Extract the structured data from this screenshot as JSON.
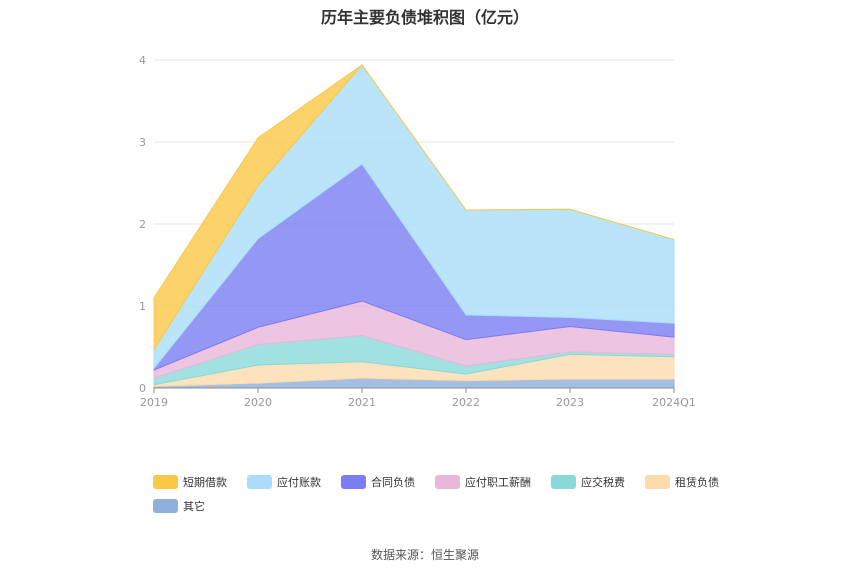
{
  "chart_data": {
    "type": "area",
    "title": "历年主要负债堆积图（亿元）",
    "categories": [
      "2019",
      "2020",
      "2021",
      "2022",
      "2023",
      "2024Q1"
    ],
    "ylim": [
      0,
      4
    ],
    "yticks": [
      "0",
      "1",
      "2",
      "3",
      "4"
    ],
    "grid": true,
    "legend_position": "bottom",
    "series": [
      {
        "name": "其它",
        "color": "#8fafdc",
        "values": [
          0.02,
          0.06,
          0.12,
          0.09,
          0.11,
          0.11
        ]
      },
      {
        "name": "租赁负债",
        "color": "#fcdcac",
        "values": [
          0.02,
          0.22,
          0.2,
          0.08,
          0.3,
          0.27
        ]
      },
      {
        "name": "应交税费",
        "color": "#8ad9d9",
        "values": [
          0.08,
          0.25,
          0.32,
          0.1,
          0.03,
          0.03
        ]
      },
      {
        "name": "应付职工薪酬",
        "color": "#e8b7da",
        "values": [
          0.1,
          0.21,
          0.42,
          0.32,
          0.31,
          0.21
        ]
      },
      {
        "name": "合同负债",
        "color": "#7b7df3",
        "values": [
          0.02,
          1.08,
          1.67,
          0.3,
          0.11,
          0.17
        ]
      },
      {
        "name": "应付账款",
        "color": "#a9ddf9",
        "values": [
          0.23,
          0.65,
          1.21,
          1.28,
          1.32,
          1.02
        ]
      },
      {
        "name": "短期借款",
        "color": "#fbc846",
        "values": [
          0.63,
          0.58,
          0.0,
          0.0,
          0.0,
          0.0
        ]
      }
    ]
  },
  "legend": [
    {
      "label": "短期借款",
      "color": "#fbc846"
    },
    {
      "label": "应付账款",
      "color": "#a9ddf9"
    },
    {
      "label": "合同负债",
      "color": "#7b7df3"
    },
    {
      "label": "应付职工薪酬",
      "color": "#e8b7da"
    },
    {
      "label": "应交税费",
      "color": "#8ad9d9"
    },
    {
      "label": "租赁负债",
      "color": "#fcdcac"
    },
    {
      "label": "其它",
      "color": "#8fafdc"
    }
  ],
  "footer": {
    "source": "数据来源：恒生聚源"
  }
}
